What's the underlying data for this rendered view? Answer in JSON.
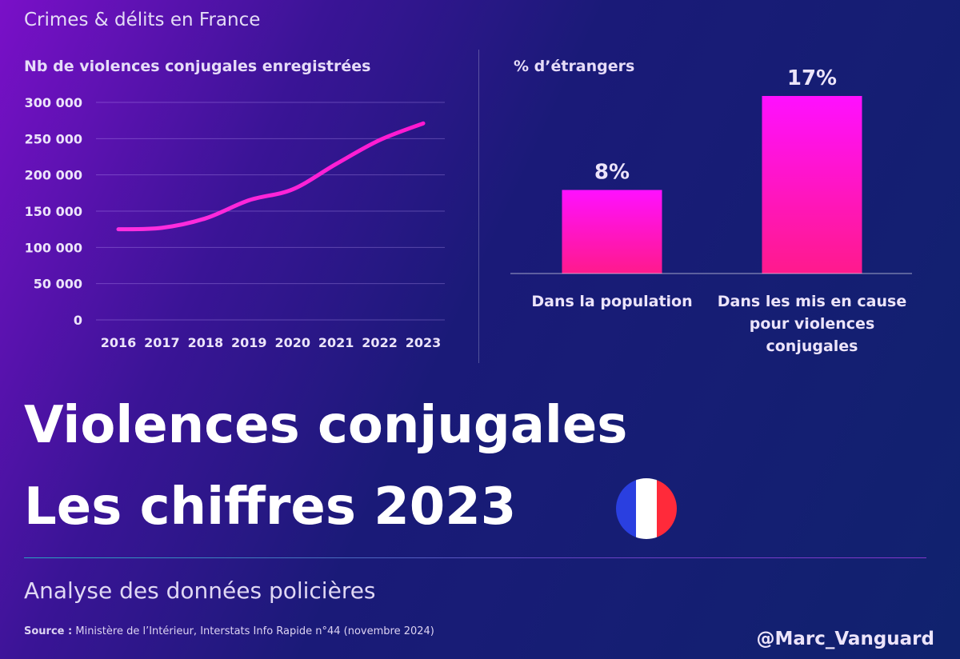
{
  "header": {
    "kicker": "Crimes & délits en France"
  },
  "colors": {
    "line": "#ff20d8",
    "bar_top": "#ff10ff",
    "bar_bottom": "#ff1a8c"
  },
  "chart_data": [
    {
      "type": "line",
      "title": "Nb de violences conjugales enregistrées",
      "x": [
        "2016",
        "2017",
        "2018",
        "2019",
        "2020",
        "2021",
        "2022",
        "2023"
      ],
      "y_ticks": [
        "0",
        "50 000",
        "100 000",
        "150 000",
        "200 000",
        "250 000",
        "300 000"
      ],
      "ylim": [
        0,
        300000
      ],
      "grid": true,
      "series": [
        {
          "values": [
            125000,
            127000,
            140000,
            165000,
            180000,
            215000,
            248000,
            271000
          ]
        }
      ]
    },
    {
      "type": "bar",
      "title": "% d’étrangers",
      "categories": [
        [
          "Dans la population"
        ],
        [
          "Dans les mis en cause",
          "pour violences",
          "conjugales"
        ]
      ],
      "values": [
        8,
        17
      ],
      "value_labels": [
        "8%",
        "17%"
      ],
      "ylim": [
        0,
        17
      ]
    }
  ],
  "headline": {
    "line1": "Violences conjugales",
    "line2": "Les chiffres 2023"
  },
  "flag": {
    "colors": [
      "#2a3fe0",
      "#ffffff",
      "#ff2a3a"
    ]
  },
  "subtitle": "Analyse des données policières",
  "source": {
    "label": "Source :",
    "text": "Ministère de l’Intérieur, Interstats Info Rapide n°44 (novembre 2024)"
  },
  "handle": "@Marc_Vanguard"
}
